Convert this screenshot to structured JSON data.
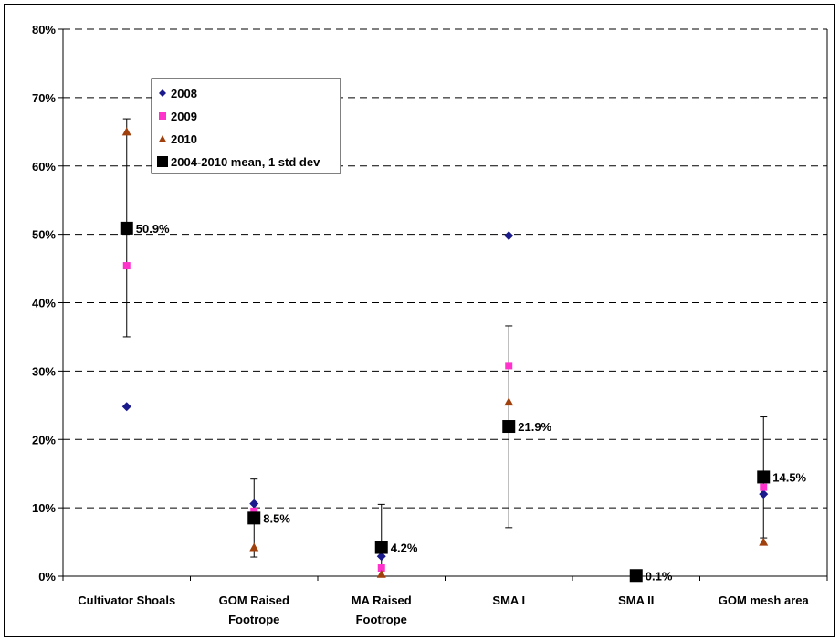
{
  "chart_data": {
    "type": "scatter",
    "title": "",
    "xlabel": "",
    "ylabel": "",
    "ylim": [
      0,
      80
    ],
    "y_ticks": [
      "0%",
      "10%",
      "20%",
      "30%",
      "40%",
      "50%",
      "60%",
      "70%",
      "80%"
    ],
    "y_tick_values": [
      0,
      10,
      20,
      30,
      40,
      50,
      60,
      70,
      80
    ],
    "grid": true,
    "legend_position": "top-left",
    "categories": [
      [
        "Cultivator Shoals"
      ],
      [
        "GOM Raised",
        "Footrope"
      ],
      [
        "MA Raised",
        "Footrope"
      ],
      [
        "SMA I"
      ],
      [
        "SMA II"
      ],
      [
        "GOM mesh area"
      ]
    ],
    "series": [
      {
        "name": "2008",
        "marker": "diamond",
        "color": "#1a1a8c",
        "values": [
          24.8,
          10.6,
          2.9,
          49.8,
          null,
          12.0
        ]
      },
      {
        "name": "2009",
        "marker": "square",
        "color": "#ff33cc",
        "values": [
          45.4,
          9.5,
          1.2,
          30.8,
          null,
          13.0
        ]
      },
      {
        "name": "2010",
        "marker": "triangle",
        "color": "#a0410d",
        "values": [
          65.0,
          4.2,
          0.3,
          25.5,
          null,
          5.0
        ]
      }
    ],
    "mean_series": {
      "name": "2004-2010 mean, 1 std dev",
      "marker": "square",
      "color": "#000000",
      "values": [
        50.9,
        8.5,
        4.2,
        21.9,
        0.1,
        14.5
      ],
      "labels": [
        "50.9%",
        "8.5%",
        "4.2%",
        "21.9%",
        "0.1%",
        "14.5%"
      ],
      "error_low": [
        35.0,
        2.8,
        0.0,
        7.1,
        0.1,
        5.6
      ],
      "error_high": [
        66.9,
        14.2,
        10.5,
        36.6,
        0.1,
        23.3
      ]
    }
  }
}
